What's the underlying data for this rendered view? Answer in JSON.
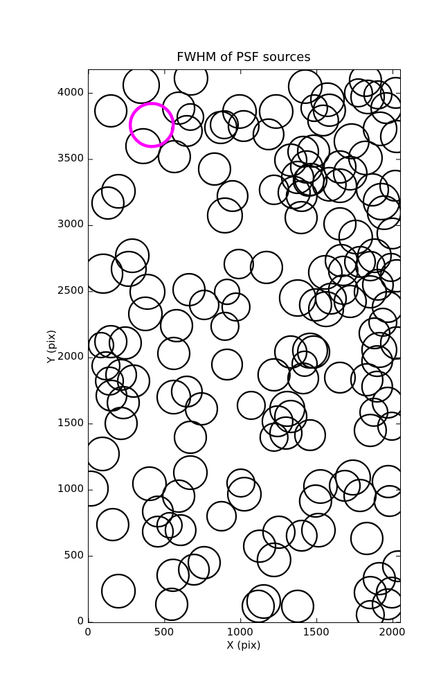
{
  "figure": {
    "title": "FWHM of PSF sources",
    "xlabel": "X (pix)",
    "ylabel": "Y (pix)"
  },
  "chart_data": {
    "type": "scatter",
    "title": "FWHM of PSF sources",
    "xlabel": "X (pix)",
    "ylabel": "Y (pix)",
    "xlim": [
      0,
      2048
    ],
    "ylim": [
      0,
      4176
    ],
    "x_ticks": [
      0,
      500,
      1000,
      1500,
      2000
    ],
    "y_ticks": [
      0,
      500,
      1000,
      1500,
      2000,
      2500,
      3000,
      3500,
      4000
    ],
    "grid": false,
    "marker_style": "unfilled circle; [x_data, y_data, radius_screen_px]",
    "stroke_color": "#000000",
    "stroke_width": 2.2,
    "highlight_color": "#ff00ff",
    "highlight_stroke_width": 4.5,
    "highlight_point": [
      415,
      3760,
      31
    ],
    "points": [
      [
        346,
        4061,
        26
      ],
      [
        673,
        4113,
        24
      ],
      [
        146,
        3867,
        23
      ],
      [
        592,
        3888,
        23
      ],
      [
        669,
        3820,
        19
      ],
      [
        646,
        3715,
        22
      ],
      [
        359,
        3600,
        25
      ],
      [
        564,
        3521,
        23
      ],
      [
        828,
        3427,
        23
      ],
      [
        196,
        3259,
        24
      ],
      [
        127,
        3170,
        23
      ],
      [
        946,
        3223,
        22
      ],
      [
        896,
        3076,
        25
      ],
      [
        287,
        2772,
        24
      ],
      [
        992,
        3862,
        24
      ],
      [
        1019,
        3752,
        22
      ],
      [
        869,
        3741,
        23
      ],
      [
        892,
        3762,
        20
      ],
      [
        1233,
        3862,
        24
      ],
      [
        1183,
        3689,
        22
      ],
      [
        1424,
        4051,
        24
      ],
      [
        1570,
        3951,
        24
      ],
      [
        1583,
        3872,
        23
      ],
      [
        1483,
        3888,
        19
      ],
      [
        1542,
        3794,
        22
      ],
      [
        1820,
        4098,
        23
      ],
      [
        1774,
        4003,
        20
      ],
      [
        1834,
        3972,
        24
      ],
      [
        1902,
        3988,
        20
      ],
      [
        1957,
        3888,
        22
      ],
      [
        2020,
        4003,
        22
      ],
      [
        1916,
        3731,
        24
      ],
      [
        2025,
        3673,
        23
      ],
      [
        1729,
        3637,
        25
      ],
      [
        1820,
        3511,
        24
      ],
      [
        1652,
        3443,
        23
      ],
      [
        1479,
        3563,
        23
      ],
      [
        1329,
        3495,
        23
      ],
      [
        1411,
        3558,
        22
      ],
      [
        1433,
        3443,
        23
      ],
      [
        1374,
        3364,
        23
      ],
      [
        1447,
        3338,
        22
      ],
      [
        1351,
        3249,
        23
      ],
      [
        1401,
        3223,
        22
      ],
      [
        1219,
        3270,
        21
      ],
      [
        1397,
        3060,
        23
      ],
      [
        1461,
        3348,
        23
      ],
      [
        1583,
        3312,
        24
      ],
      [
        1720,
        3396,
        24
      ],
      [
        1652,
        3301,
        24
      ],
      [
        1866,
        3270,
        23
      ],
      [
        2016,
        3301,
        22
      ],
      [
        1925,
        3181,
        26
      ],
      [
        1943,
        3097,
        24
      ],
      [
        1997,
        2940,
        22
      ],
      [
        1652,
        3013,
        23
      ],
      [
        1756,
        2913,
        24
      ],
      [
        1661,
        2735,
        23
      ],
      [
        1879,
        2772,
        24
      ],
      [
        1169,
        2683,
        23
      ],
      [
        1556,
        2646,
        24
      ],
      [
        1674,
        2657,
        21
      ],
      [
        1784,
        2725,
        22
      ],
      [
        1852,
        2693,
        21
      ],
      [
        1988,
        2683,
        20
      ],
      [
        2025,
        2620,
        23
      ],
      [
        1374,
        2452,
        26
      ],
      [
        1492,
        2400,
        23
      ],
      [
        1561,
        2368,
        25
      ],
      [
        1593,
        2447,
        22
      ],
      [
        1674,
        2515,
        21
      ],
      [
        1720,
        2426,
        23
      ],
      [
        1852,
        2499,
        23
      ],
      [
        1902,
        2552,
        22
      ],
      [
        1966,
        2384,
        22
      ],
      [
        1934,
        2269,
        20
      ],
      [
        1879,
        2185,
        22
      ],
      [
        2025,
        2112,
        23
      ],
      [
        1911,
        2059,
        25
      ],
      [
        1897,
        1975,
        22
      ],
      [
        1329,
        2044,
        23
      ],
      [
        1456,
        2054,
        25
      ],
      [
        1479,
        2044,
        23
      ],
      [
        1420,
        1955,
        18
      ],
      [
        1219,
        1871,
        23
      ],
      [
        1411,
        1844,
        22
      ],
      [
        1652,
        1850,
        22
      ],
      [
        1829,
        1834,
        23
      ],
      [
        1897,
        1782,
        22
      ],
      [
        1966,
        1661,
        22
      ],
      [
        1875,
        1588,
        20
      ],
      [
        1069,
        1640,
        20
      ],
      [
        1306,
        1614,
        25
      ],
      [
        1329,
        1556,
        23
      ],
      [
        1242,
        1520,
        22
      ],
      [
        1297,
        1431,
        23
      ],
      [
        1219,
        1399,
        20
      ],
      [
        1456,
        1415,
        22
      ],
      [
        1852,
        1451,
        23
      ],
      [
        1993,
        1483,
        20
      ],
      [
        96,
        2636,
        28
      ],
      [
        264,
        2672,
        25
      ],
      [
        387,
        2499,
        25
      ],
      [
        373,
        2332,
        24
      ],
      [
        660,
        2515,
        23
      ],
      [
        760,
        2400,
        21
      ],
      [
        578,
        2243,
        23
      ],
      [
        910,
        2499,
        18
      ],
      [
        969,
        2384,
        20
      ],
      [
        896,
        2238,
        20
      ],
      [
        987,
        2709,
        21
      ],
      [
        560,
        2033,
        23
      ],
      [
        82,
        2096,
        18
      ],
      [
        146,
        2122,
        23
      ],
      [
        241,
        2112,
        23
      ],
      [
        114,
        1939,
        20
      ],
      [
        214,
        1871,
        22
      ],
      [
        137,
        1824,
        20
      ],
      [
        296,
        1824,
        23
      ],
      [
        150,
        1714,
        22
      ],
      [
        228,
        1661,
        23
      ],
      [
        214,
        1504,
        23
      ],
      [
        560,
        1703,
        24
      ],
      [
        646,
        1745,
        22
      ],
      [
        742,
        1614,
        23
      ],
      [
        910,
        1949,
        22
      ],
      [
        669,
        1399,
        23
      ],
      [
        91,
        1273,
        24
      ],
      [
        14,
        1011,
        25
      ],
      [
        400,
        1048,
        24
      ],
      [
        669,
        1132,
        24
      ],
      [
        592,
        954,
        23
      ],
      [
        455,
        838,
        22
      ],
      [
        455,
        686,
        22
      ],
      [
        532,
        734,
        18
      ],
      [
        605,
        697,
        22
      ],
      [
        159,
        739,
        23
      ],
      [
        874,
        802,
        21
      ],
      [
        760,
        451,
        23
      ],
      [
        692,
        398,
        22
      ],
      [
        555,
        356,
        23
      ],
      [
        196,
        236,
        24
      ],
      [
        546,
        136,
        23
      ],
      [
        1001,
        1053,
        20
      ],
      [
        1024,
        969,
        24
      ],
      [
        1524,
        1027,
        24
      ],
      [
        1492,
        917,
        23
      ],
      [
        1738,
        1095,
        25
      ],
      [
        1684,
        1032,
        22
      ],
      [
        1784,
        959,
        23
      ],
      [
        1970,
        1064,
        23
      ],
      [
        1979,
        917,
        22
      ],
      [
        1829,
        634,
        23
      ],
      [
        1511,
        697,
        24
      ],
      [
        1251,
        681,
        23
      ],
      [
        1401,
        655,
        22
      ],
      [
        1124,
        576,
        23
      ],
      [
        1219,
        472,
        24
      ],
      [
        1151,
        157,
        24
      ],
      [
        1115,
        121,
        23
      ],
      [
        1374,
        121,
        23
      ],
      [
        1911,
        330,
        23
      ],
      [
        1852,
        225,
        23
      ],
      [
        1993,
        225,
        22
      ],
      [
        1966,
        136,
        22
      ],
      [
        1852,
        58,
        20
      ],
      [
        2034,
        424,
        22
      ]
    ],
    "legend": null,
    "tick_direction": "in",
    "ticks_on_all_sides": true
  }
}
